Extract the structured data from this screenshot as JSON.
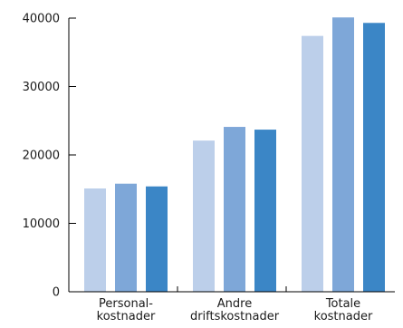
{
  "chart_data": {
    "type": "bar",
    "categories": [
      [
        "Personal-",
        "kostnader"
      ],
      [
        "Andre",
        "driftskostnader"
      ],
      [
        "Totale",
        "kostnader"
      ]
    ],
    "series": [
      {
        "values": [
          15100,
          22100,
          37400
        ],
        "color": "#bccfea"
      },
      {
        "values": [
          15800,
          24100,
          40100
        ],
        "color": "#7ea7d8"
      },
      {
        "values": [
          15400,
          23700,
          39300
        ],
        "color": "#3b86c6"
      }
    ],
    "title": "",
    "xlabel": "",
    "ylabel": "",
    "ylim": [
      0,
      40000
    ],
    "yticks": [
      "0",
      "10000",
      "20000",
      "30000",
      "40000"
    ],
    "grid": true,
    "legend": "none"
  }
}
